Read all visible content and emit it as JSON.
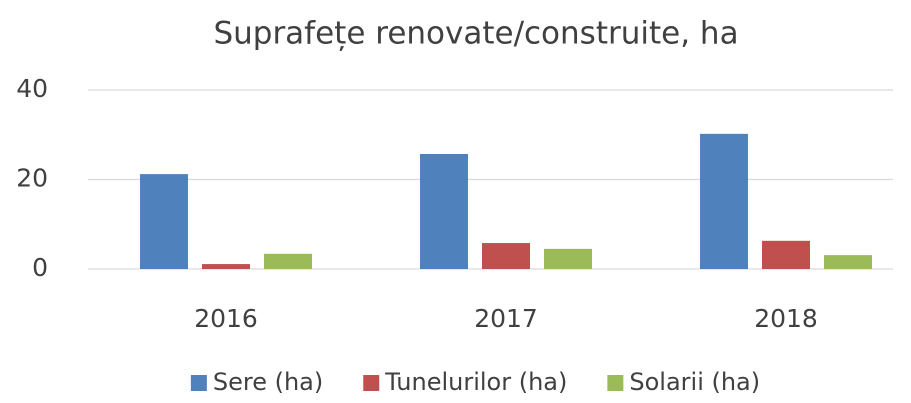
{
  "chart_data": {
    "type": "bar",
    "title": "Suprafețe renovate/construite, ha",
    "categories": [
      "2016",
      "2017",
      "2018"
    ],
    "series": [
      {
        "name": "Sere (ha)",
        "color": "#4f81bd",
        "values": [
          21.2,
          25.7,
          30.2
        ]
      },
      {
        "name": "Tunelurilor (ha)",
        "color": "#c0504d",
        "values": [
          1.1,
          5.8,
          6.3
        ]
      },
      {
        "name": "Solarii (ha)",
        "color": "#9bbb59",
        "values": [
          3.4,
          4.5,
          3.1
        ]
      }
    ],
    "ylim": [
      0,
      40
    ],
    "yticks": [
      0,
      20,
      40
    ],
    "grid": true,
    "legend": "bottom"
  }
}
